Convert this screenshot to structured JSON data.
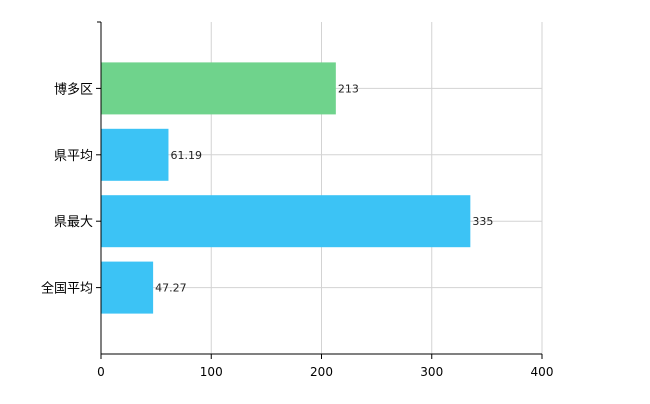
{
  "chart_data": {
    "type": "bar",
    "orientation": "horizontal",
    "categories": [
      "博多区",
      "県平均",
      "県最大",
      "全国平均"
    ],
    "values": [
      213,
      61.19,
      335,
      47.27
    ],
    "value_labels": [
      "213",
      "61.19",
      "335",
      "47.27"
    ],
    "bar_colors": [
      "#6fd38c",
      "#3cc3f5",
      "#3cc3f5",
      "#3cc3f5"
    ],
    "xlim": [
      0,
      400
    ],
    "xticks": [
      0,
      100,
      200,
      300,
      400
    ],
    "grid": true,
    "legend": "none"
  }
}
